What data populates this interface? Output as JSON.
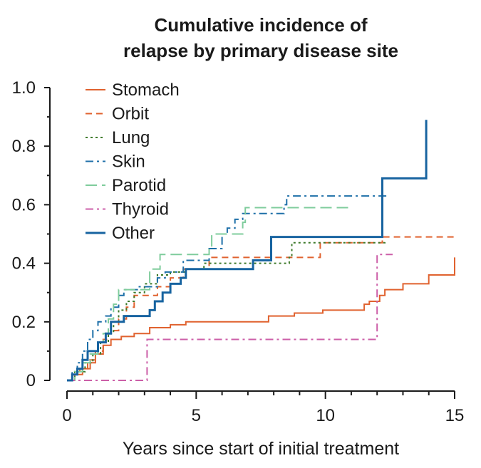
{
  "chart_data": {
    "type": "line",
    "title_lines": [
      "Cumulative incidence of",
      "relapse by primary disease site"
    ],
    "xlabel": "Years since start of initial treatment",
    "ylabel": "",
    "xlim": [
      0,
      15
    ],
    "ylim": [
      0,
      1.0
    ],
    "x_ticks": [
      {
        "value": 0,
        "label": "0"
      },
      {
        "value": 5,
        "label": "5"
      },
      {
        "value": 10,
        "label": "10"
      },
      {
        "value": 15,
        "label": "15"
      }
    ],
    "y_ticks": [
      {
        "value": 0,
        "label": "0"
      },
      {
        "value": 0.2,
        "label": "0.2"
      },
      {
        "value": 0.4,
        "label": "0.4"
      },
      {
        "value": 0.6,
        "label": "0.6"
      },
      {
        "value": 0.8,
        "label": "0.8"
      },
      {
        "value": 1.0,
        "label": "1.0"
      }
    ],
    "grid": false,
    "legend_position": "top-left",
    "step": true,
    "series": [
      {
        "name": "Stomach",
        "color": "#e0622f",
        "dash": "solid",
        "points": [
          [
            0,
            0
          ],
          [
            0.3,
            0.02
          ],
          [
            0.6,
            0.04
          ],
          [
            0.9,
            0.06
          ],
          [
            1.1,
            0.09
          ],
          [
            1.4,
            0.12
          ],
          [
            1.7,
            0.14
          ],
          [
            2.1,
            0.15
          ],
          [
            2.6,
            0.16
          ],
          [
            3.2,
            0.18
          ],
          [
            4.0,
            0.19
          ],
          [
            4.6,
            0.2
          ],
          [
            7.8,
            0.22
          ],
          [
            8.8,
            0.23
          ],
          [
            9.9,
            0.24
          ],
          [
            11.5,
            0.26
          ],
          [
            11.7,
            0.27
          ],
          [
            12.1,
            0.29
          ],
          [
            12.3,
            0.31
          ],
          [
            13.0,
            0.33
          ],
          [
            14.0,
            0.36
          ],
          [
            15.0,
            0.41
          ],
          [
            15.0,
            0.42
          ]
        ]
      },
      {
        "name": "Orbit",
        "color": "#e0622f",
        "dash": "dashed",
        "points": [
          [
            0,
            0
          ],
          [
            0.2,
            0.02
          ],
          [
            0.5,
            0.04
          ],
          [
            0.8,
            0.07
          ],
          [
            1.1,
            0.1
          ],
          [
            1.4,
            0.14
          ],
          [
            1.6,
            0.17
          ],
          [
            2.0,
            0.21
          ],
          [
            2.3,
            0.25
          ],
          [
            2.6,
            0.29
          ],
          [
            3.5,
            0.32
          ],
          [
            4.0,
            0.35
          ],
          [
            4.5,
            0.38
          ],
          [
            5.5,
            0.42
          ],
          [
            9.8,
            0.47
          ],
          [
            12.2,
            0.49
          ],
          [
            15.0,
            0.49
          ]
        ]
      },
      {
        "name": "Lung",
        "color": "#3d7a2a",
        "dash": "dotted",
        "points": [
          [
            0,
            0
          ],
          [
            0.3,
            0.03
          ],
          [
            0.7,
            0.06
          ],
          [
            1.0,
            0.09
          ],
          [
            1.3,
            0.13
          ],
          [
            1.6,
            0.16
          ],
          [
            1.8,
            0.2
          ],
          [
            2.0,
            0.24
          ],
          [
            2.3,
            0.27
          ],
          [
            2.6,
            0.3
          ],
          [
            3.0,
            0.33
          ],
          [
            3.5,
            0.36
          ],
          [
            4.0,
            0.37
          ],
          [
            4.6,
            0.38
          ],
          [
            5.3,
            0.4
          ],
          [
            8.6,
            0.42
          ],
          [
            8.7,
            0.47
          ],
          [
            12.3,
            0.48
          ]
        ]
      },
      {
        "name": "Skin",
        "color": "#1d6fa8",
        "dash": "dashdot",
        "points": [
          [
            0,
            0
          ],
          [
            0.2,
            0.03
          ],
          [
            0.4,
            0.06
          ],
          [
            0.6,
            0.1
          ],
          [
            0.8,
            0.14
          ],
          [
            1.0,
            0.17
          ],
          [
            1.2,
            0.2
          ],
          [
            1.5,
            0.22
          ],
          [
            1.7,
            0.25
          ],
          [
            2.0,
            0.29
          ],
          [
            2.2,
            0.31
          ],
          [
            2.8,
            0.32
          ],
          [
            3.5,
            0.35
          ],
          [
            3.8,
            0.37
          ],
          [
            4.5,
            0.41
          ],
          [
            5.5,
            0.45
          ],
          [
            6.0,
            0.5
          ],
          [
            6.2,
            0.52
          ],
          [
            6.5,
            0.55
          ],
          [
            6.8,
            0.57
          ],
          [
            8.4,
            0.6
          ],
          [
            8.5,
            0.63
          ],
          [
            12.4,
            0.63
          ]
        ]
      },
      {
        "name": "Parotid",
        "color": "#7fcc9c",
        "dash": "longdash",
        "points": [
          [
            0,
            0
          ],
          [
            0.3,
            0.03
          ],
          [
            0.6,
            0.06
          ],
          [
            0.9,
            0.09
          ],
          [
            1.2,
            0.13
          ],
          [
            1.4,
            0.16
          ],
          [
            1.6,
            0.21
          ],
          [
            1.8,
            0.26
          ],
          [
            2.0,
            0.31
          ],
          [
            3.2,
            0.38
          ],
          [
            3.6,
            0.43
          ],
          [
            5.5,
            0.45
          ],
          [
            5.6,
            0.5
          ],
          [
            6.8,
            0.54
          ],
          [
            6.9,
            0.59
          ],
          [
            11.0,
            0.59
          ]
        ]
      },
      {
        "name": "Thyroid",
        "color": "#cc5fa8",
        "dash": "dashdot",
        "points": [
          [
            0,
            0
          ],
          [
            3.0,
            0.0
          ],
          [
            3.1,
            0.14
          ],
          [
            11.9,
            0.14
          ],
          [
            12.0,
            0.43
          ],
          [
            12.6,
            0.43
          ]
        ]
      },
      {
        "name": "Other",
        "color": "#1763a0",
        "dash": "solid",
        "points": [
          [
            0,
            0
          ],
          [
            0.2,
            0.02
          ],
          [
            0.4,
            0.04
          ],
          [
            0.6,
            0.07
          ],
          [
            0.8,
            0.1
          ],
          [
            1.2,
            0.13
          ],
          [
            1.5,
            0.16
          ],
          [
            1.7,
            0.2
          ],
          [
            2.2,
            0.22
          ],
          [
            3.2,
            0.24
          ],
          [
            3.4,
            0.27
          ],
          [
            3.7,
            0.3
          ],
          [
            4.0,
            0.33
          ],
          [
            4.4,
            0.35
          ],
          [
            4.6,
            0.38
          ],
          [
            7.2,
            0.41
          ],
          [
            7.9,
            0.49
          ],
          [
            12.2,
            0.69
          ],
          [
            13.9,
            0.89
          ]
        ]
      }
    ]
  }
}
